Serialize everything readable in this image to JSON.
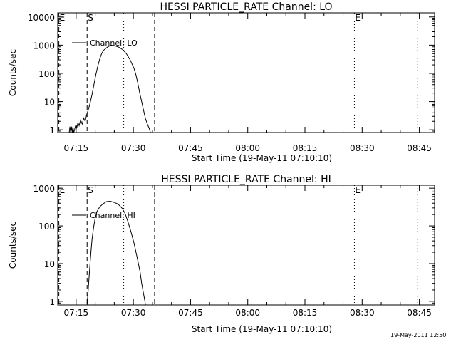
{
  "footer_timestamp": "19-May-2011 12:50",
  "chart_data": [
    {
      "type": "line",
      "title": "HESSI PARTICLE_RATE Channel: LO",
      "xlabel": "Start Time (19-May-11 07:10:10)",
      "ylabel": "Counts/sec",
      "x_unit": "minutes after 07:10:10",
      "xlim": [
        0,
        98.83
      ],
      "ylog": true,
      "ylim": [
        0.8,
        14000
      ],
      "xticks": [
        4.83,
        19.83,
        34.83,
        49.83,
        64.83,
        79.83,
        94.83
      ],
      "xtick_labels": [
        "07:15",
        "07:30",
        "07:45",
        "08:00",
        "08:15",
        "08:30",
        "08:45"
      ],
      "yticks": [
        1,
        10,
        100,
        1000,
        10000
      ],
      "ytick_labels": [
        "1",
        "10",
        "100",
        "1000",
        "10000"
      ],
      "legend": {
        "placement": "top-left",
        "label": "Channel: LO"
      },
      "markers": [
        {
          "x": 0.3,
          "style": "dashed",
          "label": "E"
        },
        {
          "x": 7.7,
          "style": "dashed",
          "label": "S"
        },
        {
          "x": 17.3,
          "style": "dotted",
          "label": ""
        },
        {
          "x": 25.4,
          "style": "dashed",
          "label": ""
        },
        {
          "x": 77.8,
          "style": "dotted",
          "label": "E"
        },
        {
          "x": 94.4,
          "style": "dotted",
          "label": ""
        }
      ],
      "series": [
        {
          "name": "Channel: LO",
          "x": [
            3.0,
            3.2,
            3.4,
            3.6,
            3.8,
            4.0,
            4.2,
            4.4,
            4.6,
            4.8,
            5.0,
            5.3,
            5.6,
            6.0,
            6.4,
            6.8,
            7.2,
            7.6,
            8.0,
            8.5,
            9.0,
            9.5,
            10.0,
            10.5,
            11.0,
            11.5,
            12.0,
            13.0,
            14.0,
            15.0,
            16.0,
            17.0,
            18.0,
            19.0,
            20.0,
            20.5,
            21.0,
            21.5,
            22.0,
            22.5,
            23.0,
            23.5,
            24.0,
            24.3
          ],
          "y": [
            0.8,
            1.3,
            0.8,
            1.3,
            0.8,
            1.3,
            0.8,
            1.0,
            1.3,
            1.5,
            1.2,
            1.8,
            1.4,
            2.2,
            1.6,
            2.6,
            2.0,
            3.5,
            5.0,
            9.0,
            18,
            40,
            90,
            180,
            320,
            500,
            650,
            850,
            1000,
            950,
            850,
            700,
            500,
            300,
            150,
            90,
            45,
            20,
            10,
            5,
            2.5,
            1.6,
            1.1,
            0.8
          ]
        }
      ]
    },
    {
      "type": "line",
      "title": "HESSI PARTICLE_RATE Channel: HI",
      "xlabel": "Start Time (19-May-11 07:10:10)",
      "ylabel": "Counts/sec",
      "x_unit": "minutes after 07:10:10",
      "xlim": [
        0,
        98.83
      ],
      "ylog": true,
      "ylim": [
        0.8,
        1200
      ],
      "xticks": [
        4.83,
        19.83,
        34.83,
        49.83,
        64.83,
        79.83,
        94.83
      ],
      "xtick_labels": [
        "07:15",
        "07:30",
        "07:45",
        "08:00",
        "08:15",
        "08:30",
        "08:45"
      ],
      "yticks": [
        1,
        10,
        100,
        1000
      ],
      "ytick_labels": [
        "1",
        "10",
        "100",
        "1000"
      ],
      "legend": {
        "placement": "top-left",
        "label": "Channel: HI"
      },
      "markers": [
        {
          "x": 0.3,
          "style": "dashed",
          "label": "E"
        },
        {
          "x": 7.7,
          "style": "dashed",
          "label": "S"
        },
        {
          "x": 17.3,
          "style": "dotted",
          "label": ""
        },
        {
          "x": 25.4,
          "style": "dashed",
          "label": ""
        },
        {
          "x": 77.8,
          "style": "dotted",
          "label": "E"
        },
        {
          "x": 94.4,
          "style": "dotted",
          "label": ""
        }
      ],
      "series": [
        {
          "name": "Channel: HI",
          "x": [
            7.7,
            7.9,
            8.1,
            8.4,
            8.7,
            9.0,
            9.4,
            9.8,
            10.3,
            11.0,
            11.8,
            12.8,
            13.8,
            14.8,
            15.8,
            16.8,
            17.6,
            18.4,
            19.2,
            20.0,
            20.8,
            21.6,
            22.0,
            22.4,
            22.8,
            23.0
          ],
          "y": [
            0.8,
            1.5,
            3.0,
            8.0,
            20,
            45,
            90,
            160,
            240,
            320,
            380,
            440,
            450,
            420,
            380,
            300,
            220,
            130,
            70,
            35,
            15,
            6,
            3,
            1.8,
            1.1,
            0.8
          ]
        }
      ]
    }
  ]
}
